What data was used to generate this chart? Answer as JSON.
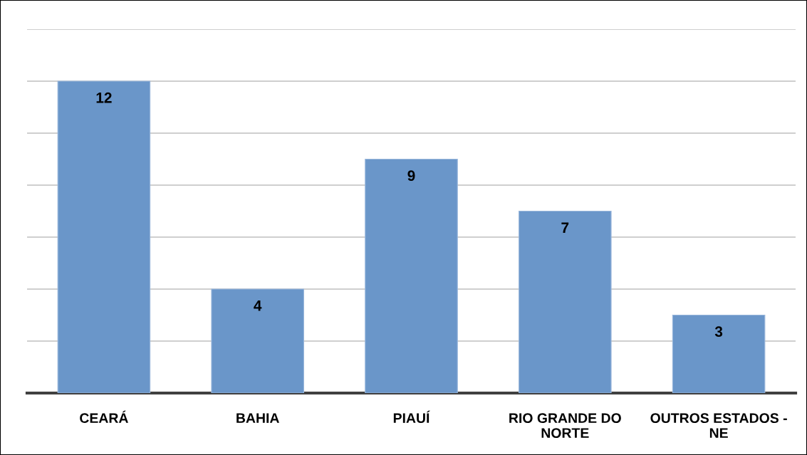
{
  "chart_data": {
    "type": "bar",
    "categories": [
      "CEARÁ",
      "BAHIA",
      "PIAUÍ",
      "RIO GRANDE DO NORTE",
      "OUTROS ESTADOS - NE"
    ],
    "values": [
      12,
      4,
      9,
      7,
      3
    ],
    "color": "#6a96c9",
    "ylim": [
      0,
      14
    ],
    "yticks": [
      {
        "value": 0,
        "label": null
      },
      {
        "value": 2,
        "label": null
      },
      {
        "value": 4,
        "label": null
      },
      {
        "value": 6,
        "label": null
      },
      {
        "value": 8,
        "label": null
      },
      {
        "value": 10,
        "label": null
      },
      {
        "value": 12,
        "label": null
      },
      {
        "value": 14,
        "label": null
      }
    ],
    "grid": "y",
    "tick_labels": "x",
    "data_labels": true,
    "legend": false
  }
}
